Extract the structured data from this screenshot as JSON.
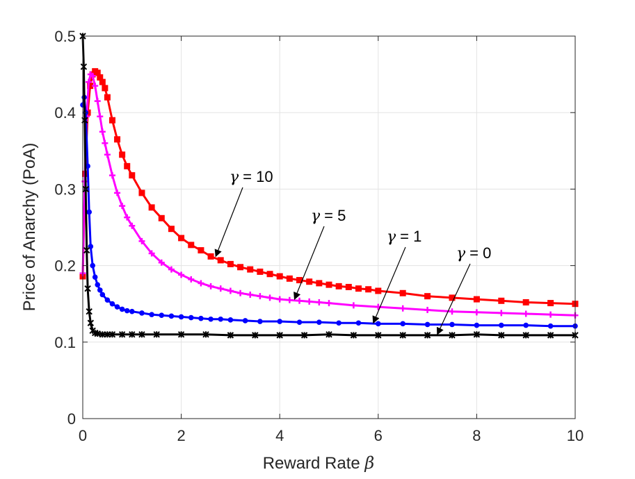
{
  "chart_data": {
    "type": "line",
    "xlabel": "Reward Rate",
    "xlabel_symbol": "β",
    "ylabel": "Price of Anarchy (PoA)",
    "xlim": [
      0,
      10
    ],
    "ylim": [
      0,
      0.5
    ],
    "xticks": [
      0,
      2,
      4,
      6,
      8,
      10
    ],
    "xtick_labels": [
      "0",
      "2",
      "4",
      "6",
      "8",
      "10"
    ],
    "yticks": [
      0,
      0.1,
      0.2,
      0.3,
      0.4,
      0.5
    ],
    "ytick_labels": [
      "0",
      "0.1",
      "0.2",
      "0.3",
      "0.4",
      "0.5"
    ],
    "grid": true,
    "legend": "none (curves labeled by arrow annotations)",
    "series": [
      {
        "label": "γ = 10",
        "color": "#ff0000",
        "marker": "square",
        "x": [
          0,
          0.05,
          0.1,
          0.15,
          0.2,
          0.25,
          0.3,
          0.35,
          0.4,
          0.45,
          0.5,
          0.6,
          0.7,
          0.8,
          0.9,
          1.0,
          1.2,
          1.4,
          1.6,
          1.8,
          2.0,
          2.2,
          2.4,
          2.6,
          2.8,
          3.0,
          3.2,
          3.4,
          3.6,
          3.8,
          4.0,
          4.2,
          4.4,
          4.6,
          4.8,
          5.0,
          5.2,
          5.4,
          5.6,
          5.8,
          6.0,
          6.5,
          7.0,
          7.5,
          8.0,
          8.5,
          9.0,
          9.5,
          10.0
        ],
        "y": [
          0.186,
          0.32,
          0.4,
          0.435,
          0.45,
          0.454,
          0.452,
          0.446,
          0.44,
          0.432,
          0.42,
          0.39,
          0.365,
          0.345,
          0.33,
          0.318,
          0.295,
          0.276,
          0.262,
          0.248,
          0.236,
          0.227,
          0.22,
          0.212,
          0.207,
          0.202,
          0.198,
          0.195,
          0.192,
          0.189,
          0.186,
          0.183,
          0.181,
          0.179,
          0.177,
          0.175,
          0.173,
          0.172,
          0.17,
          0.169,
          0.167,
          0.164,
          0.16,
          0.158,
          0.156,
          0.154,
          0.152,
          0.151,
          0.15
        ]
      },
      {
        "label": "γ = 5",
        "color": "#ff00ff",
        "marker": "plus",
        "x": [
          0,
          0.04,
          0.08,
          0.12,
          0.16,
          0.2,
          0.25,
          0.3,
          0.35,
          0.4,
          0.45,
          0.5,
          0.6,
          0.7,
          0.8,
          0.9,
          1.0,
          1.2,
          1.4,
          1.6,
          1.8,
          2.0,
          2.2,
          2.4,
          2.6,
          2.8,
          3.0,
          3.2,
          3.4,
          3.6,
          3.8,
          4.0,
          4.2,
          4.4,
          4.6,
          4.8,
          5.0,
          5.5,
          6.0,
          6.5,
          7.0,
          7.5,
          8.0,
          8.5,
          9.0,
          9.5,
          10.0
        ],
        "y": [
          0.19,
          0.31,
          0.395,
          0.44,
          0.45,
          0.448,
          0.435,
          0.415,
          0.395,
          0.375,
          0.36,
          0.345,
          0.318,
          0.295,
          0.278,
          0.263,
          0.252,
          0.232,
          0.216,
          0.204,
          0.195,
          0.188,
          0.182,
          0.177,
          0.173,
          0.17,
          0.167,
          0.164,
          0.162,
          0.16,
          0.158,
          0.156,
          0.155,
          0.154,
          0.153,
          0.152,
          0.151,
          0.148,
          0.146,
          0.144,
          0.142,
          0.14,
          0.139,
          0.138,
          0.137,
          0.136,
          0.135
        ]
      },
      {
        "label": "γ = 1",
        "color": "#0000ff",
        "marker": "dot",
        "x": [
          0,
          0.03,
          0.06,
          0.1,
          0.13,
          0.16,
          0.2,
          0.25,
          0.3,
          0.35,
          0.4,
          0.5,
          0.6,
          0.7,
          0.8,
          0.9,
          1.0,
          1.2,
          1.4,
          1.6,
          1.8,
          2.0,
          2.2,
          2.4,
          2.6,
          2.8,
          3.0,
          3.3,
          3.6,
          4.0,
          4.4,
          4.8,
          5.2,
          5.6,
          6.0,
          6.5,
          7.0,
          7.5,
          8.0,
          8.5,
          9.0,
          9.5,
          10.0
        ],
        "y": [
          0.41,
          0.42,
          0.4,
          0.33,
          0.27,
          0.225,
          0.2,
          0.185,
          0.175,
          0.168,
          0.162,
          0.155,
          0.15,
          0.146,
          0.143,
          0.141,
          0.14,
          0.138,
          0.136,
          0.135,
          0.134,
          0.133,
          0.132,
          0.131,
          0.13,
          0.13,
          0.129,
          0.128,
          0.127,
          0.127,
          0.126,
          0.126,
          0.125,
          0.125,
          0.124,
          0.124,
          0.123,
          0.123,
          0.122,
          0.122,
          0.122,
          0.121,
          0.121
        ]
      },
      {
        "label": "γ = 0",
        "color": "#000000",
        "marker": "star",
        "x": [
          0,
          0.02,
          0.04,
          0.06,
          0.08,
          0.1,
          0.13,
          0.16,
          0.2,
          0.25,
          0.3,
          0.4,
          0.5,
          0.6,
          0.8,
          1.0,
          1.2,
          1.5,
          2.0,
          2.5,
          3.0,
          3.5,
          4.0,
          4.5,
          5.0,
          5.5,
          6.0,
          6.5,
          7.0,
          7.5,
          8.0,
          8.5,
          9.0,
          9.5,
          10.0
        ],
        "y": [
          0.5,
          0.46,
          0.39,
          0.3,
          0.22,
          0.17,
          0.14,
          0.125,
          0.115,
          0.112,
          0.111,
          0.11,
          0.11,
          0.11,
          0.11,
          0.11,
          0.11,
          0.11,
          0.11,
          0.11,
          0.109,
          0.109,
          0.109,
          0.109,
          0.11,
          0.109,
          0.109,
          0.109,
          0.109,
          0.109,
          0.11,
          0.109,
          0.109,
          0.109,
          0.109
        ]
      }
    ],
    "annotations": [
      {
        "text": "= 10",
        "symbol": "γ",
        "arrow_to": [
          2.7,
          0.212
        ]
      },
      {
        "text": "= 5",
        "symbol": "γ",
        "arrow_to": [
          4.3,
          0.156
        ]
      },
      {
        "text": "= 1",
        "symbol": "γ",
        "arrow_to": [
          5.9,
          0.125
        ]
      },
      {
        "text": "= 0",
        "symbol": "γ",
        "arrow_to": [
          7.2,
          0.11
        ]
      }
    ]
  }
}
